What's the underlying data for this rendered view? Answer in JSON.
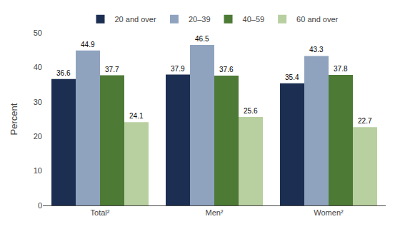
{
  "chart_data": {
    "type": "bar",
    "categories": [
      "Total²",
      "Men²",
      "Women²"
    ],
    "series": [
      {
        "name": "20 and over",
        "color": "#1c2f52",
        "values": [
          36.6,
          37.9,
          35.4
        ]
      },
      {
        "name": "20–39",
        "color": "#8fa3bf",
        "values": [
          44.9,
          46.5,
          43.3
        ]
      },
      {
        "name": "40–59",
        "color": "#4d7a35",
        "values": [
          37.7,
          37.6,
          37.8
        ]
      },
      {
        "name": "60 and over",
        "color": "#b8cfa0",
        "values": [
          24.1,
          25.6,
          22.7
        ]
      }
    ],
    "y_label": "Percent",
    "ylim": [
      0,
      50
    ],
    "yticks": [
      0,
      10,
      20,
      30,
      40,
      50
    ],
    "grid": false,
    "legend": "top",
    "data_labels": true
  }
}
